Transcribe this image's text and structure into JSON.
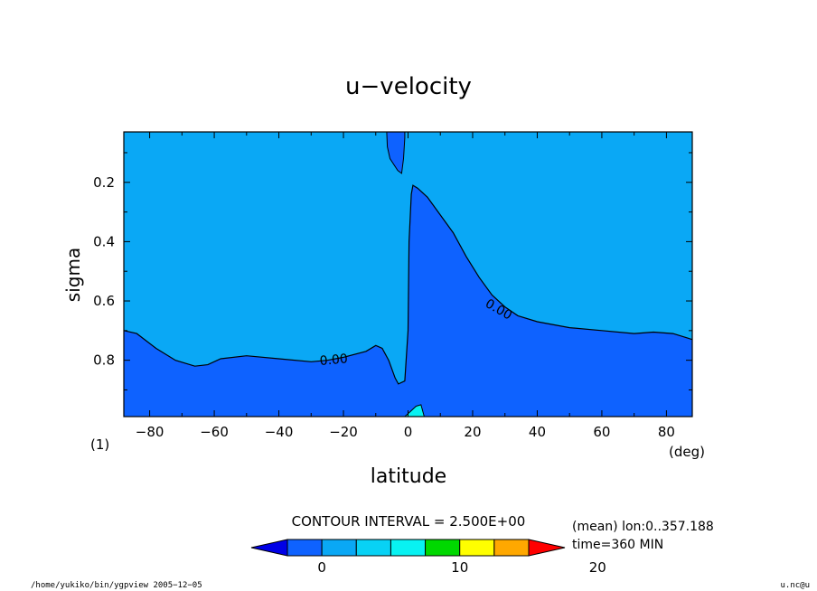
{
  "chart_data": {
    "type": "contour",
    "title": "u−velocity",
    "xlabel": "latitude",
    "ylabel": "sigma",
    "x_unit": "(deg)",
    "y_unit": "(1)",
    "xlim": [
      -88,
      88
    ],
    "ylim": [
      0.03,
      0.99
    ],
    "y_reversed": true,
    "x_ticks": [
      -80,
      -60,
      -40,
      -20,
      0,
      20,
      40,
      60,
      80
    ],
    "x_tick_labels": [
      "−80",
      "−60",
      "−40",
      "−20",
      "0",
      "20",
      "40",
      "60",
      "80"
    ],
    "y_ticks": [
      0.2,
      0.4,
      0.6,
      0.8
    ],
    "y_tick_labels": [
      "0.2",
      "0.4",
      "0.6",
      "0.8"
    ],
    "contour_label": "0.00",
    "contour_interval_text": "CONTOUR INTERVAL = 2.500E+00",
    "fill_colors": {
      "below_zero": "#0e62ff",
      "zero_to_interval": "#0aa8f5",
      "interval_2": "#08f2f2"
    },
    "zero_contour": [
      [
        -88,
        0.7
      ],
      [
        -84,
        0.71
      ],
      [
        -78,
        0.76
      ],
      [
        -72,
        0.8
      ],
      [
        -66,
        0.82
      ],
      [
        -62,
        0.815
      ],
      [
        -58,
        0.795
      ],
      [
        -50,
        0.785
      ],
      [
        -40,
        0.795
      ],
      [
        -30,
        0.805
      ],
      [
        -25,
        0.8
      ],
      [
        -20,
        0.79
      ],
      [
        -13,
        0.77
      ],
      [
        -10,
        0.75
      ],
      [
        -8,
        0.76
      ],
      [
        -6,
        0.8
      ],
      [
        -4,
        0.86
      ],
      [
        -3,
        0.88
      ],
      [
        -1,
        0.87
      ],
      [
        0,
        0.7
      ],
      [
        0.3,
        0.4
      ],
      [
        1,
        0.24
      ],
      [
        1.5,
        0.21
      ],
      [
        3,
        0.22
      ],
      [
        6,
        0.25
      ],
      [
        10,
        0.31
      ],
      [
        14,
        0.37
      ],
      [
        18,
        0.45
      ],
      [
        22,
        0.52
      ],
      [
        26,
        0.58
      ],
      [
        30,
        0.62
      ],
      [
        34,
        0.65
      ],
      [
        40,
        0.67
      ],
      [
        50,
        0.69
      ],
      [
        60,
        0.7
      ],
      [
        70,
        0.71
      ],
      [
        76,
        0.705
      ],
      [
        82,
        0.71
      ],
      [
        88,
        0.73
      ]
    ],
    "upper_negative_region": [
      [
        -6.6,
        0.03
      ],
      [
        -1.0,
        0.03
      ],
      [
        -1.0,
        0.05
      ],
      [
        -1.4,
        0.12
      ],
      [
        -2.0,
        0.17
      ],
      [
        -3.2,
        0.16
      ],
      [
        -5.6,
        0.12
      ],
      [
        -6.4,
        0.08
      ]
    ],
    "surface_positive_region": [
      [
        -1,
        0.99
      ],
      [
        0.5,
        0.975
      ],
      [
        2.5,
        0.955
      ],
      [
        4,
        0.95
      ],
      [
        4.5,
        0.97
      ],
      [
        5,
        0.99
      ]
    ],
    "label_positions": [
      {
        "x": -23,
        "y": 0.8,
        "angle": -5
      },
      {
        "x": 28,
        "y": 0.63,
        "angle": 30
      }
    ],
    "colorbar": {
      "tick_labels": [
        "0",
        "10",
        "20"
      ],
      "colors": [
        "#0000e6",
        "#0e62ff",
        "#0aa8f5",
        "#08d2f5",
        "#08f2f2",
        "#00d800",
        "#ffff00",
        "#ffa800",
        "#ff0000"
      ]
    },
    "annotation_lines": [
      "(mean) lon:0..357.188",
      "time=360 MIN"
    ],
    "footer_left": "/home/yukiko/bin/ygpview  2005−12−05",
    "footer_right": "u.nc@u"
  }
}
